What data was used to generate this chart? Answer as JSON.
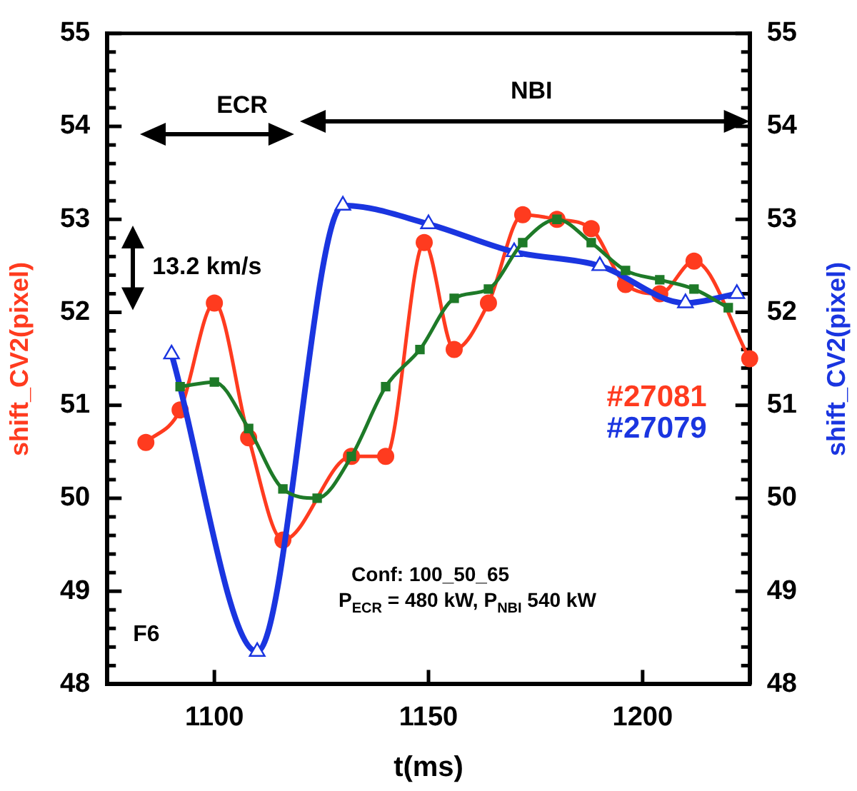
{
  "chart_data": {
    "type": "line",
    "xlabel": "t(ms)",
    "ylabel": "shift_CV2(pixel)",
    "y2label": "shift_CV2(pixel)",
    "xlim": [
      1075,
      1225
    ],
    "xticks": [
      1100,
      1150,
      1200
    ],
    "ylim": [
      48,
      55
    ],
    "yticks": [
      48,
      {
        "value": 48.2,
        "label": null
      },
      {
        "value": 48.4,
        "label": null
      },
      {
        "value": 48.6,
        "label": null
      },
      {
        "value": 48.8,
        "label": null
      },
      49,
      {
        "value": 49.2,
        "label": null
      },
      {
        "value": 49.4,
        "label": null
      },
      {
        "value": 49.6,
        "label": null
      },
      {
        "value": 49.8,
        "label": null
      },
      50,
      {
        "value": 50.2,
        "label": null
      },
      {
        "value": 50.4,
        "label": null
      },
      {
        "value": 50.6,
        "label": null
      },
      {
        "value": 50.8,
        "label": null
      },
      51,
      {
        "value": 51.2,
        "label": null
      },
      {
        "value": 51.4,
        "label": null
      },
      {
        "value": 51.6,
        "label": null
      },
      {
        "value": 51.8,
        "label": null
      },
      52,
      {
        "value": 52.2,
        "label": null
      },
      {
        "value": 52.4,
        "label": null
      },
      {
        "value": 52.6,
        "label": null
      },
      {
        "value": 52.8,
        "label": null
      },
      53,
      {
        "value": 53.2,
        "label": null
      },
      {
        "value": 53.4,
        "label": null
      },
      {
        "value": 53.6,
        "label": null
      },
      {
        "value": 53.8,
        "label": null
      },
      54,
      {
        "value": 54.2,
        "label": null
      },
      {
        "value": 54.4,
        "label": null
      },
      {
        "value": 54.6,
        "label": null
      },
      {
        "value": 54.8,
        "label": null
      },
      55
    ],
    "y2lim": [
      48,
      55
    ],
    "y2ticks": [
      48,
      {
        "value": 48.2,
        "label": null
      },
      {
        "value": 48.4,
        "label": null
      },
      {
        "value": 48.6,
        "label": null
      },
      {
        "value": 48.8,
        "label": null
      },
      49,
      {
        "value": 49.2,
        "label": null
      },
      {
        "value": 49.4,
        "label": null
      },
      {
        "value": 49.6,
        "label": null
      },
      {
        "value": 49.8,
        "label": null
      },
      50,
      {
        "value": 50.2,
        "label": null
      },
      {
        "value": 50.4,
        "label": null
      },
      {
        "value": 50.6,
        "label": null
      },
      {
        "value": 50.8,
        "label": null
      },
      51,
      {
        "value": 51.2,
        "label": null
      },
      {
        "value": 51.4,
        "label": null
      },
      {
        "value": 51.6,
        "label": null
      },
      {
        "value": 51.8,
        "label": null
      },
      52,
      {
        "value": 52.2,
        "label": null
      },
      {
        "value": 52.4,
        "label": null
      },
      {
        "value": 52.6,
        "label": null
      },
      {
        "value": 52.8,
        "label": null
      },
      53,
      {
        "value": 53.2,
        "label": null
      },
      {
        "value": 53.4,
        "label": null
      },
      {
        "value": 53.6,
        "label": null
      },
      {
        "value": 53.8,
        "label": null
      },
      54,
      {
        "value": 54.2,
        "label": null
      },
      {
        "value": 54.4,
        "label": null
      },
      {
        "value": 54.6,
        "label": null
      },
      {
        "value": 54.8,
        "label": null
      },
      55
    ],
    "grid": false,
    "legend": "right",
    "line_style": "solid",
    "series": [
      {
        "name": "#27081",
        "color": "#ff3b1f",
        "marker": "circle",
        "x": [
          1084,
          1092,
          1100,
          1108,
          1116,
          1132,
          1140,
          1149,
          1156,
          1164,
          1172,
          1180,
          1188,
          1196,
          1204,
          1212,
          1225
        ],
        "values": [
          50.6,
          50.95,
          52.1,
          50.65,
          49.55,
          50.45,
          50.45,
          52.75,
          51.6,
          52.1,
          53.05,
          53.0,
          52.9,
          52.3,
          52.2,
          52.55,
          51.5
        ]
      },
      {
        "name": "#27079",
        "color": "#1a35e0",
        "marker": "triangle",
        "x": [
          1090,
          1110,
          1130,
          1150,
          1170,
          1190,
          1210,
          1222
        ],
        "values": [
          51.55,
          48.35,
          53.15,
          52.95,
          52.65,
          52.5,
          52.1,
          52.2
        ]
      },
      {
        "color": "#1e7a28",
        "marker": "square",
        "x": [
          1092,
          1100,
          1108,
          1116,
          1124,
          1132,
          1140,
          1148,
          1156,
          1164,
          1172,
          1180,
          1188,
          1196,
          1204,
          1212,
          1220
        ],
        "values": [
          51.2,
          51.25,
          50.75,
          50.1,
          50.0,
          50.45,
          51.2,
          51.6,
          52.15,
          52.25,
          52.75,
          53.0,
          52.75,
          52.45,
          52.35,
          52.25,
          52.05
        ]
      }
    ],
    "annotations": [
      "ECR",
      "NBI",
      "13.2 km/s",
      "Conf: 100_50_65",
      "P$_{ECR}$ = 480 kW, P$_{NBI}$ 540 kW",
      "F6"
    ]
  }
}
